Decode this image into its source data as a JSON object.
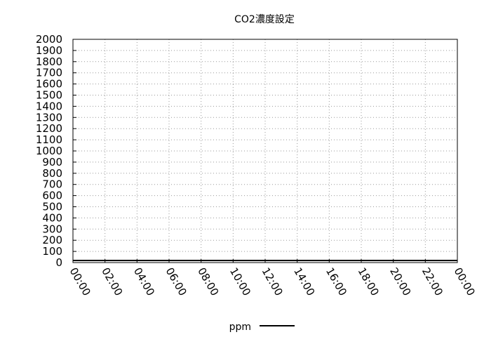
{
  "chart_data": {
    "type": "line",
    "title": "CO2濃度設定",
    "xlabel": "",
    "ylabel": "",
    "ylim": [
      0,
      2000
    ],
    "yticks": [
      0,
      100,
      200,
      300,
      400,
      500,
      600,
      700,
      800,
      900,
      1000,
      1100,
      1200,
      1300,
      1400,
      1500,
      1600,
      1700,
      1800,
      1900,
      2000
    ],
    "xticks": [
      "00:00",
      "02:00",
      "04:00",
      "06:00",
      "08:00",
      "10:00",
      "12:00",
      "14:00",
      "16:00",
      "18:00",
      "20:00",
      "22:00",
      "00:00"
    ],
    "xlim_hours": [
      0,
      24
    ],
    "grid": true,
    "legend_position": "bottom-center",
    "series": [
      {
        "name": "ppm",
        "color": "#000000",
        "points": [
          {
            "x": "00:00",
            "y": 0
          },
          {
            "x": "24:00",
            "y": 0
          }
        ]
      }
    ]
  }
}
